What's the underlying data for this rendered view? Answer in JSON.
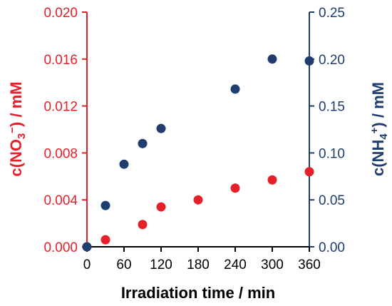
{
  "chart_data": {
    "type": "scatter",
    "xlabel": "Irradiation time / min",
    "ylabel_left": {
      "prefix": "c(NO",
      "sub": "3",
      "sup": "−",
      "suffix": ") / mM"
    },
    "ylabel_right": {
      "prefix": "c(NH",
      "sub": "4",
      "sup": "+",
      "suffix": ") / mM"
    },
    "x_ticks": [
      "0",
      "60",
      "120",
      "180",
      "240",
      "300",
      "360"
    ],
    "y_left_ticks": [
      "0.000",
      "0.004",
      "0.008",
      "0.012",
      "0.016",
      "0.020"
    ],
    "y_right_ticks": [
      "0.00",
      "0.05",
      "0.10",
      "0.15",
      "0.20",
      "0.25"
    ],
    "xlim": [
      0,
      360
    ],
    "ylim_left": [
      0,
      0.02
    ],
    "ylim_right": [
      0,
      0.25
    ],
    "grid": false,
    "series": [
      {
        "axis": "left",
        "color": "#e5202a",
        "x": [
          0,
          30,
          90,
          120,
          180,
          240,
          300,
          360
        ],
        "y": [
          0.0,
          0.0006,
          0.0019,
          0.0034,
          0.004,
          0.005,
          0.0057,
          0.0064
        ]
      },
      {
        "axis": "right",
        "color": "#1f3d6e",
        "x": [
          0,
          30,
          60,
          90,
          120,
          240,
          300,
          360
        ],
        "y": [
          0.0,
          0.044,
          0.088,
          0.11,
          0.126,
          0.168,
          0.2,
          0.198
        ]
      }
    ]
  }
}
